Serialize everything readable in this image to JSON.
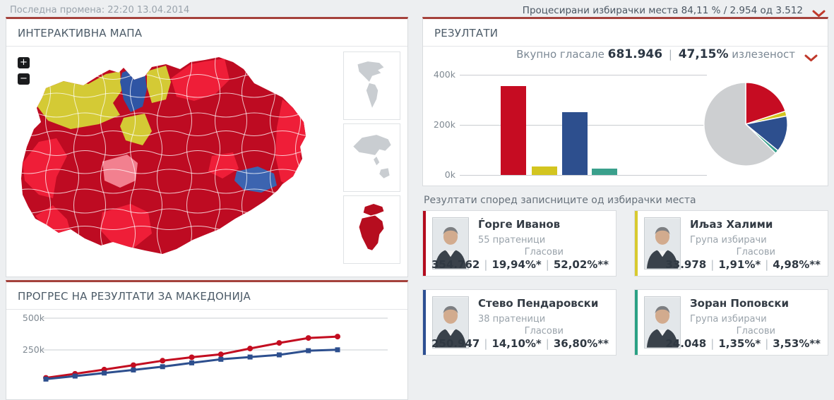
{
  "top_bar": {
    "last_change": "Последна промена: 22:20 13.04.2014",
    "processed": "Процесирани избирачки места 84,11 % / 2.954 од 3.512"
  },
  "map_panel": {
    "title": "ИНТЕРАКТИВНА МАПА",
    "zoom_in_label": "+",
    "zoom_out_label": "−",
    "view_thumbnails": [
      {
        "name": "americas",
        "active": false
      },
      {
        "name": "asia-oceania",
        "active": false
      },
      {
        "name": "europe-africa",
        "active": true
      }
    ],
    "map_colors": {
      "dark_red": "#be0b22",
      "bright_red": "#ef1e38",
      "yellow": "#d4ca35",
      "blue": "#2f55a4",
      "light_blue": "#3c64b0",
      "pink": "#f2808f",
      "inactive_thumb": "#c9cdd1",
      "active_thumb": "#b60d1f"
    }
  },
  "results_panel": {
    "title": "РЕЗУЛТАТИ",
    "turnout": {
      "prefix": "Вкупно гласале",
      "votes": "681.946",
      "separator": "|",
      "percent": "47,15%",
      "suffix": "излезеност"
    }
  },
  "results_note": "Резултати според записниците од избирачки места",
  "progress_panel": {
    "title": "ПРОГРЕС НА РЕЗУЛТАТИ ЗА МАКЕДОНИЈА"
  },
  "candidates": [
    {
      "name": "Ѓорге Иванов",
      "affiliation": "55 пратеници",
      "votes_label": "Гласови",
      "votes": "354.762",
      "pct_electorate": "19,94%*",
      "pct_valid": "52,02%**",
      "color": "#b30b1e"
    },
    {
      "name": "Иљаз Халими",
      "affiliation": "Група избирачи",
      "votes_label": "Гласови",
      "votes": "33.978",
      "pct_electorate": "1,91%*",
      "pct_valid": "4,98%**",
      "color": "#d8ca2f"
    },
    {
      "name": "Стево Пендаровски",
      "affiliation": "38 пратеници",
      "votes_label": "Гласови",
      "votes": "250.947",
      "pct_electorate": "14,10%*",
      "pct_valid": "36,80%**",
      "color": "#2d4f92"
    },
    {
      "name": "Зоран Поповски",
      "affiliation": "Група избирачи",
      "votes_label": "Гласови",
      "votes": "24.048",
      "pct_electorate": "1,35%*",
      "pct_valid": "3,53%**",
      "color": "#2aa184"
    }
  ],
  "chart_data": [
    {
      "id": "results_bar",
      "type": "bar",
      "categories": [
        "Ѓорге Иванов",
        "Иљаз Халими",
        "Стево Пендаровски",
        "Зоран Поповски"
      ],
      "values": [
        354762,
        33978,
        250947,
        24048
      ],
      "colors": [
        "#c60c22",
        "#d3c520",
        "#2d4f8e",
        "#3aa08c"
      ],
      "yticks": [
        {
          "label": "400k",
          "value": 400000
        },
        {
          "label": "200k",
          "value": 200000
        },
        {
          "label": "0k",
          "value": 0
        }
      ],
      "ylim": [
        0,
        400000
      ],
      "grid": true,
      "legend": "none"
    },
    {
      "id": "turnout_pie",
      "type": "pie",
      "slices": [
        {
          "label": "Ѓорге Иванов",
          "percent": 19.94,
          "color": "#c60c22"
        },
        {
          "label": "Иљаз Халими",
          "percent": 1.91,
          "color": "#d3c520"
        },
        {
          "label": "Стево Пендаровски",
          "percent": 14.1,
          "color": "#2d4f8e"
        },
        {
          "label": "Зоран Поповски",
          "percent": 1.35,
          "color": "#3aa08c"
        },
        {
          "label": "remainder",
          "percent": 62.7,
          "color": "#cdcfd1"
        }
      ],
      "start_angle_deg": 0,
      "clockwise": true
    },
    {
      "id": "progress_line",
      "type": "line",
      "x_note": "time steps, x-axis cut off at bottom of viewport",
      "series": [
        {
          "name": "Ѓорге Иванов",
          "color": "#c30d20",
          "marker": "circle",
          "values_k": [
            30,
            62,
            95,
            130,
            165,
            192,
            215,
            261,
            305,
            344,
            355
          ]
        },
        {
          "name": "Стево Пендаровски",
          "color": "#2d4f8e",
          "marker": "square",
          "values_k": [
            20,
            44,
            68,
            92,
            118,
            148,
            176,
            194,
            211,
            244,
            251
          ]
        }
      ],
      "yticks": [
        {
          "label": "500k",
          "value": 500000
        },
        {
          "label": "250k",
          "value": 250000
        }
      ],
      "ylim": [
        0,
        500000
      ],
      "grid": true,
      "legend": "none"
    }
  ]
}
